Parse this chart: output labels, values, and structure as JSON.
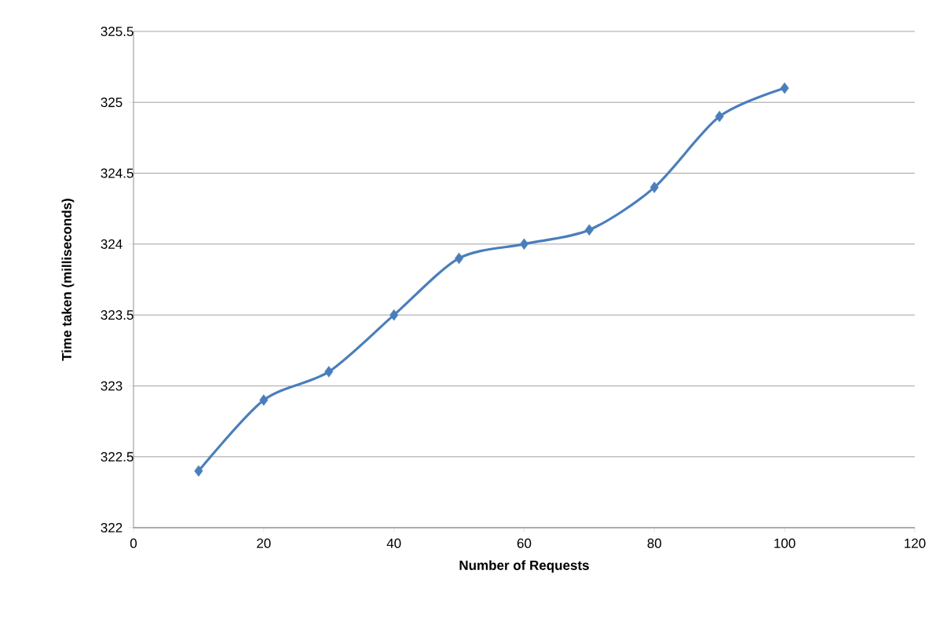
{
  "chart_data": {
    "type": "line",
    "xlabel": "Number of  Requests",
    "ylabel": "Time taken (milliseconds)",
    "x": [
      10,
      20,
      30,
      40,
      50,
      60,
      70,
      80,
      90,
      100
    ],
    "series": [
      {
        "color": "#4a7ebb",
        "values": [
          322.4,
          322.9,
          323.1,
          323.5,
          323.9,
          324.0,
          324.1,
          324.4,
          324.9,
          325.1
        ]
      }
    ],
    "xlim": [
      0,
      120
    ],
    "xticks": [
      0,
      20,
      40,
      60,
      80,
      100,
      120
    ],
    "ylim": [
      322,
      325.5
    ],
    "yticks": [
      322,
      322.5,
      323,
      323.5,
      324,
      324.5,
      325,
      325.5
    ],
    "grid": "y",
    "marker": "diamond",
    "line_style": "solid"
  }
}
